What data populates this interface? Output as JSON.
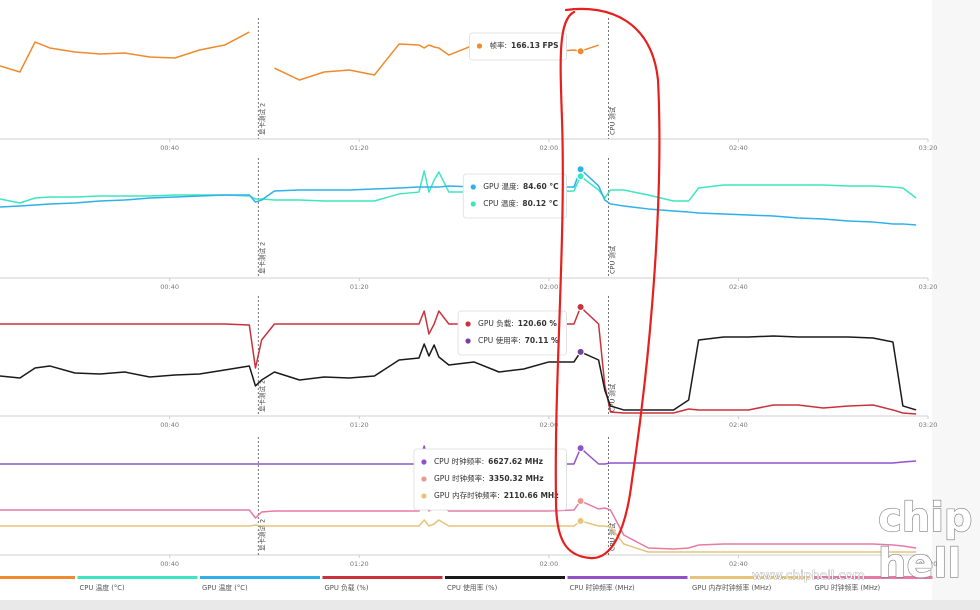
{
  "chart_data": [
    {
      "type": "line",
      "x": [
        4.2,
        8.4,
        11.6,
        14.7,
        20.0,
        25.3,
        30.5,
        35.8,
        41.1,
        46.3,
        51.6,
        56.8,
        58.1,
        59.4,
        62.1,
        67.4,
        72.6,
        77.9,
        83.2,
        88.4,
        92.6,
        93.7,
        94.7,
        95.8,
        96.8,
        98.9,
        104.2,
        109.5,
        114.7,
        120.0,
        125.3,
        126.7,
        130.5,
        131.8,
        133.0,
        135.8,
        141.0,
        146.3,
        149.5,
        151.6,
        156.9,
        162.1,
        167.4,
        172.6,
        177.9,
        183.2,
        188.4,
        192.6,
        194.7,
        197.5
      ],
      "xlim": [
        4.2,
        200
      ],
      "xticks": [
        {
          "value": 40,
          "label": "00:40"
        },
        {
          "value": 80,
          "label": "01:20"
        },
        {
          "value": 120,
          "label": "02:00"
        },
        {
          "value": 160,
          "label": "02:40"
        },
        {
          "value": 200,
          "label": "03:20"
        }
      ],
      "ylim": [
        0,
        263
      ],
      "series": [
        {
          "color": "#ef8a2e",
          "values": [
            138.1,
            126.8,
            183.5,
            172.2,
            164.6,
            160.8,
            162.7,
            155.1,
            153.3,
            168.4,
            177.8,
            202.4,
            null,
            null,
            134.3,
            111.6,
            126.8,
            130.5,
            121.1,
            179.7,
            177.8,
            172.2,
            177.8,
            174.1,
            172.2,
            158.9,
            177.8,
            158.9,
            168.4,
            164.6,
            168.4,
            166.13,
            177.8,
            null,
            null,
            null,
            null,
            null,
            null,
            null,
            null,
            null,
            null,
            null,
            null,
            null,
            null,
            null,
            null,
            null
          ]
        }
      ],
      "annotations": [
        {
          "x": 58.7,
          "label": "显卡测试 2"
        },
        {
          "x": 132.6,
          "label": "CPU 测试"
        }
      ],
      "tooltip": {
        "x": 126.7,
        "items": [
          {
            "label": "帧率:",
            "value": 166.13,
            "value_label": "166.13 FPS",
            "color": "#ef8a2e"
          }
        ]
      }
    },
    {
      "type": "line",
      "x": [
        4.2,
        8.4,
        11.6,
        14.7,
        20.0,
        25.3,
        30.5,
        35.8,
        41.1,
        46.3,
        51.6,
        56.8,
        58.1,
        59.4,
        62.1,
        67.4,
        72.6,
        77.9,
        83.2,
        88.4,
        92.6,
        93.7,
        94.7,
        95.8,
        96.8,
        98.9,
        104.2,
        109.5,
        114.7,
        120.0,
        125.3,
        126.7,
        130.5,
        131.8,
        133.0,
        135.8,
        141.0,
        146.3,
        149.5,
        151.6,
        156.9,
        162.1,
        167.4,
        172.6,
        177.9,
        183.2,
        188.4,
        192.6,
        194.7,
        197.5
      ],
      "xlim": [
        4.2,
        200
      ],
      "xticks": [
        {
          "value": 40,
          "label": "00:40"
        },
        {
          "value": 80,
          "label": "01:20"
        },
        {
          "value": 120,
          "label": "02:00"
        },
        {
          "value": 160,
          "label": "02:40"
        },
        {
          "value": 200,
          "label": "03:20"
        }
      ],
      "ylim": [
        15,
        91.8
      ],
      "series": [
        {
          "name": "CPU 温度 (°C)",
          "color": "#3de6c0",
          "values": [
            65.6,
            63.0,
            66.2,
            66.8,
            66.8,
            67.5,
            67.5,
            67.5,
            68.1,
            68.1,
            68.1,
            67.5,
            65.6,
            65.6,
            64.9,
            64.9,
            64.3,
            64.3,
            64.3,
            68.8,
            70.0,
            83.5,
            70.0,
            77.7,
            82.8,
            70.0,
            70.0,
            70.0,
            70.0,
            70.0,
            70.7,
            80.12,
            71.3,
            66.2,
            71.3,
            71.3,
            68.1,
            64.3,
            64.3,
            72.6,
            74.5,
            74.5,
            74.5,
            74.5,
            74.5,
            73.9,
            73.9,
            73.2,
            72.6,
            66.2
          ]
        },
        {
          "name": "GPU 温度 (°C)",
          "color": "#2eb0ea",
          "values": [
            60.4,
            61.1,
            61.7,
            62.4,
            63.0,
            64.3,
            64.9,
            66.2,
            66.8,
            67.5,
            68.1,
            68.1,
            63.6,
            64.9,
            70.7,
            71.3,
            71.3,
            71.3,
            72.0,
            72.6,
            73.2,
            73.2,
            73.2,
            73.2,
            73.2,
            73.9,
            73.2,
            73.2,
            73.2,
            73.2,
            73.2,
            84.6,
            73.9,
            64.9,
            62.4,
            61.1,
            59.2,
            57.9,
            57.2,
            56.6,
            56.0,
            55.3,
            54.7,
            53.4,
            52.8,
            51.5,
            50.8,
            49.6,
            49.6,
            48.9
          ]
        }
      ],
      "annotations": [
        {
          "x": 58.7,
          "label": "显卡测试 2"
        },
        {
          "x": 132.6,
          "label": "CPU 测试"
        }
      ],
      "tooltip": {
        "x": 126.7,
        "items": [
          {
            "label": "GPU 温度:",
            "value": 84.6,
            "value_label": "84.60 °C",
            "color": "#2eb0ea"
          },
          {
            "label": "CPU 温度:",
            "value": 80.12,
            "value_label": "80.12 °C",
            "color": "#3de6c0"
          }
        ]
      }
    },
    {
      "type": "line",
      "x": [
        4.2,
        8.4,
        11.6,
        14.7,
        20.0,
        25.3,
        30.5,
        35.8,
        41.1,
        46.3,
        51.6,
        56.8,
        58.1,
        59.4,
        62.1,
        67.4,
        72.6,
        77.9,
        83.2,
        88.4,
        92.6,
        93.7,
        94.7,
        95.8,
        96.8,
        98.9,
        104.2,
        109.5,
        114.7,
        120.0,
        125.3,
        126.7,
        130.5,
        131.8,
        133.0,
        135.8,
        141.0,
        146.3,
        149.5,
        151.6,
        156.9,
        162.1,
        167.4,
        172.6,
        177.9,
        183.2,
        188.4,
        192.6,
        194.7,
        197.5
      ],
      "xlim": [
        4.2,
        200
      ],
      "xticks": [
        {
          "value": 40,
          "label": "00:40"
        },
        {
          "value": 80,
          "label": "01:20"
        },
        {
          "value": 120,
          "label": "02:00"
        },
        {
          "value": 160,
          "label": "02:40"
        },
        {
          "value": 200,
          "label": "03:20"
        }
      ],
      "ylim": [
        -2,
        133
      ],
      "series": [
        {
          "name": "GPU 负载 (%)",
          "color": "#c9323b",
          "values": [
            101.5,
            101.5,
            101.5,
            101.5,
            101.5,
            101.5,
            101.5,
            101.5,
            101.5,
            101.5,
            101.5,
            100.4,
            52.0,
            83.5,
            101.5,
            101.5,
            101.5,
            101.5,
            101.5,
            101.5,
            101.5,
            116.1,
            90.3,
            101.5,
            116.1,
            101.5,
            101.5,
            101.5,
            101.5,
            101.5,
            101.5,
            120.6,
            101.5,
            32.9,
            2.5,
            1.4,
            1.4,
            1.4,
            5.9,
            4.8,
            4.8,
            4.8,
            10.4,
            10.4,
            7.0,
            9.3,
            10.4,
            4.8,
            1.4,
            0.3
          ]
        },
        {
          "name": "CPU 使用率 (%)",
          "color": "#1a1a1a",
          "values": [
            43.0,
            40.8,
            52.0,
            54.3,
            46.4,
            45.3,
            47.5,
            41.9,
            44.1,
            45.3,
            49.8,
            54.3,
            31.8,
            38.5,
            47.5,
            38.5,
            41.9,
            40.8,
            43.0,
            61.0,
            63.3,
            79.0,
            65.5,
            77.9,
            64.4,
            55.4,
            58.8,
            47.5,
            50.9,
            58.8,
            58.8,
            70.11,
            61.0,
            27.3,
            9.3,
            4.8,
            4.8,
            4.8,
            16.0,
            83.5,
            86.9,
            86.9,
            88.0,
            86.9,
            86.9,
            86.9,
            85.8,
            81.3,
            9.3,
            4.8
          ]
        }
      ],
      "annotations": [
        {
          "x": 58.7,
          "label": "显卡测试 2"
        },
        {
          "x": 132.6,
          "label": "CPU 测试"
        }
      ],
      "tooltip": {
        "x": 126.7,
        "items": [
          {
            "label": "GPU 负载:",
            "value": 120.6,
            "value_label": "120.60 %",
            "color": "#c9323b"
          },
          {
            "label": "CPU 使用率:",
            "value": 70.11,
            "value_label": "70.11 %",
            "color": "#7a3fa0"
          }
        ]
      }
    },
    {
      "type": "line",
      "x": [
        4.2,
        8.4,
        11.6,
        14.7,
        20.0,
        25.3,
        30.5,
        35.8,
        41.1,
        46.3,
        51.6,
        56.8,
        58.1,
        59.4,
        62.1,
        67.4,
        72.6,
        77.9,
        83.2,
        88.4,
        92.6,
        93.7,
        94.7,
        95.8,
        96.8,
        98.9,
        104.2,
        109.5,
        114.7,
        120.0,
        125.3,
        126.7,
        130.5,
        131.8,
        133.0,
        135.8,
        141.0,
        146.3,
        149.5,
        151.6,
        156.9,
        162.1,
        167.4,
        172.6,
        177.9,
        183.2,
        188.4,
        192.6,
        194.7,
        197.5
      ],
      "xlim": [
        4.2,
        200
      ],
      "xticks": [
        {
          "value": 40,
          "label": "00:40"
        },
        {
          "value": 80,
          "label": "01:20"
        },
        {
          "value": 120,
          "label": "02:00"
        },
        {
          "value": 160,
          "label": "02:40"
        },
        {
          "value": 200,
          "label": "03:20"
        }
      ],
      "ylim": [
        0,
        7316
      ],
      "series": [
        {
          "name": "CPU 时钟频率 (MHz)",
          "color": "#9152c9",
          "values": [
            5642,
            5642,
            5642,
            5642,
            5642,
            5642,
            5642,
            5642,
            5642,
            5642,
            5642,
            5642,
            5642,
            5642,
            5642,
            5642,
            5642,
            5642,
            5642,
            5642,
            5642,
            6758,
            5642,
            5642,
            6014,
            5642,
            5642,
            5642,
            5642,
            5642,
            5642,
            6627.62,
            5642,
            5642,
            5704,
            5704,
            5704,
            5704,
            5704,
            5704,
            5704,
            5704,
            5704,
            5704,
            5704,
            5704,
            5704,
            5704,
            5766,
            5828
          ]
        },
        {
          "name": "GPU 内存时钟频率 (MHz)",
          "color": "#e6c47a",
          "values": [
            1798,
            1798,
            1798,
            1798,
            1798,
            1798,
            1798,
            1798,
            1798,
            1798,
            1798,
            1798,
            1860,
            1798,
            1798,
            1798,
            1798,
            1798,
            1798,
            1798,
            1798,
            2170,
            1798,
            1922,
            2170,
            1798,
            1798,
            1798,
            1798,
            1798,
            1798,
            2110.66,
            1798,
            1798,
            1736,
            682,
            186,
            186,
            186,
            186,
            186,
            186,
            186,
            186,
            186,
            186,
            186,
            186,
            186,
            186
          ]
        },
        {
          "name": "GPU 时钟频率 (MHz)",
          "color": "#e77aa5",
          "values": [
            2790,
            2790,
            2790,
            2790,
            2790,
            2790,
            2790,
            2790,
            2790,
            2790,
            2790,
            2790,
            2294,
            2666,
            2728,
            2728,
            2728,
            2728,
            2728,
            2728,
            2728,
            3348,
            2728,
            2976,
            3224,
            2728,
            2728,
            2728,
            2728,
            2728,
            2790,
            3350.32,
            2852,
            2914,
            2790,
            1240,
            434,
            372,
            434,
            620,
            682,
            682,
            682,
            682,
            682,
            682,
            682,
            620,
            558,
            434
          ]
        }
      ],
      "annotations": [
        {
          "x": 58.7,
          "label": "显卡测试 2"
        },
        {
          "x": 132.6,
          "label": "CPU 测试"
        }
      ],
      "tooltip": {
        "x": 126.7,
        "items": [
          {
            "label": "CPU 时钟频率:",
            "value": 6627.62,
            "value_label": "6627.62 MHz",
            "color": "#9152c9"
          },
          {
            "label": "GPU 时钟频率:",
            "value": 3350.32,
            "value_label": "3350.32 MHz",
            "color": "#ec9a8a"
          },
          {
            "label": "GPU 内存时钟频率:",
            "value": 2110.66,
            "value_label": "2110.66 MHz",
            "color": "#e6c47a"
          }
        ]
      }
    }
  ],
  "watermark": {
    "site": "www.chiphell.com",
    "logo": [
      "chip",
      "hell"
    ]
  }
}
